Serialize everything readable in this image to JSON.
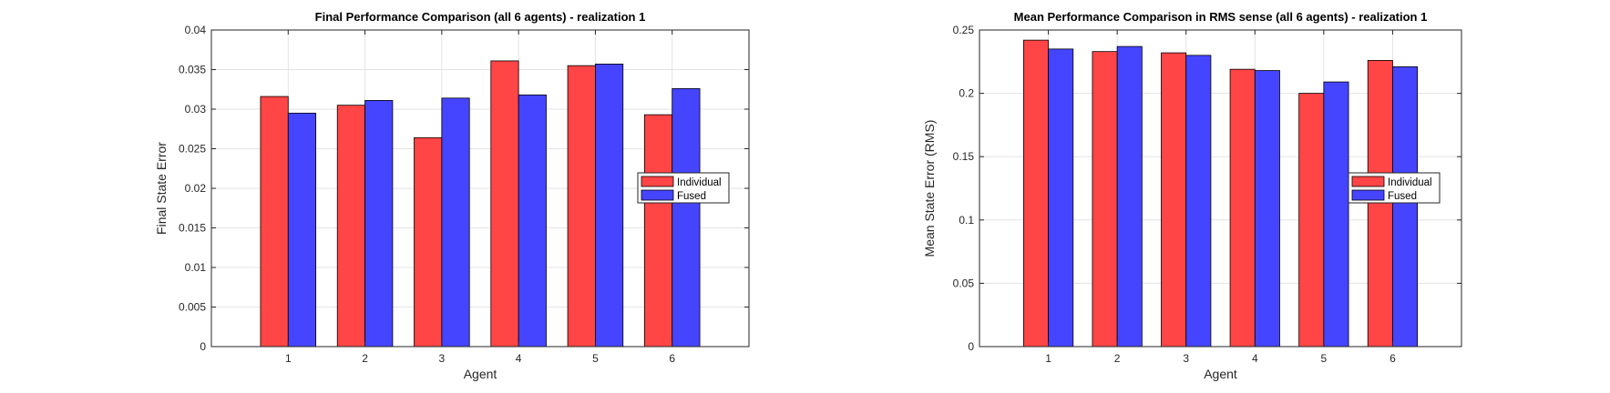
{
  "chart_data": [
    {
      "type": "bar",
      "title": "Final Performance Comparison (all 6 agents) - realization 1",
      "xlabel": "Agent",
      "ylabel": "Final State Error",
      "categories": [
        "1",
        "2",
        "3",
        "4",
        "5",
        "6"
      ],
      "xlim": [
        0,
        7
      ],
      "ylim": [
        0,
        0.04
      ],
      "yticks": [
        0,
        0.005,
        0.01,
        0.015,
        0.02,
        0.025,
        0.03,
        0.035,
        0.04
      ],
      "ytick_labels": [
        "0",
        "0.005",
        "0.01",
        "0.015",
        "0.02",
        "0.025",
        "0.03",
        "0.035",
        "0.04"
      ],
      "grid": true,
      "legend_position": "right",
      "series": [
        {
          "name": "Individual",
          "color": "#ff4545",
          "values": [
            0.0316,
            0.0305,
            0.0264,
            0.0361,
            0.0355,
            0.0293
          ]
        },
        {
          "name": "Fused",
          "color": "#4545ff",
          "values": [
            0.0295,
            0.0311,
            0.0314,
            0.0318,
            0.0357,
            0.0326
          ]
        }
      ]
    },
    {
      "type": "bar",
      "title": "Mean Performance Comparison in RMS sense (all 6 agents) - realization 1",
      "xlabel": "Agent",
      "ylabel": "Mean State Error (RMS)",
      "categories": [
        "1",
        "2",
        "3",
        "4",
        "5",
        "6"
      ],
      "xlim": [
        0,
        7
      ],
      "ylim": [
        0,
        0.25
      ],
      "yticks": [
        0,
        0.05,
        0.1,
        0.15,
        0.2,
        0.25
      ],
      "ytick_labels": [
        "0",
        "0.05",
        "0.1",
        "0.15",
        "0.2",
        "0.25"
      ],
      "grid": true,
      "legend_position": "right",
      "series": [
        {
          "name": "Individual",
          "color": "#ff4545",
          "values": [
            0.242,
            0.233,
            0.232,
            0.219,
            0.2,
            0.226
          ]
        },
        {
          "name": "Fused",
          "color": "#4545ff",
          "values": [
            0.235,
            0.237,
            0.23,
            0.218,
            0.209,
            0.221
          ]
        }
      ]
    }
  ]
}
